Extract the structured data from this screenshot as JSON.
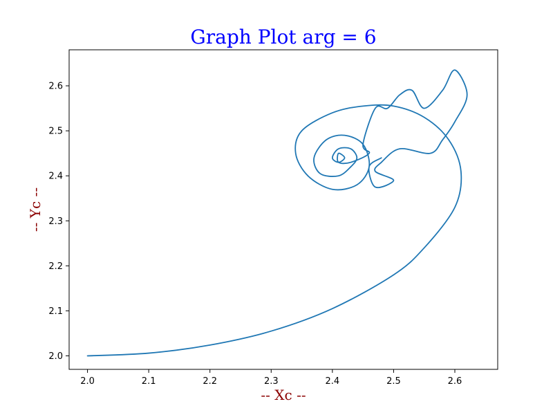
{
  "chart_data": {
    "type": "line",
    "title": "Graph Plot arg = 6",
    "xlabel": "-- Xc --",
    "ylabel": "-- Yc --",
    "xlim": [
      1.97,
      2.67
    ],
    "ylim": [
      1.97,
      2.68
    ],
    "xticks": [
      "2.0",
      "2.1",
      "2.2",
      "2.3",
      "2.4",
      "2.5",
      "2.6"
    ],
    "yticks": [
      "2.0",
      "2.1",
      "2.2",
      "2.3",
      "2.4",
      "2.5",
      "2.6"
    ],
    "grid": false,
    "legend": "none",
    "colors": {
      "series": "#1f77b4",
      "title": "#0000ff",
      "axis_label": "#8b0000"
    },
    "series": [
      {
        "x": [
          2.0,
          2.1,
          2.2,
          2.3,
          2.4,
          2.5,
          2.55,
          2.6,
          2.61,
          2.59,
          2.55,
          2.5,
          2.45,
          2.4,
          2.35,
          2.34,
          2.36,
          2.4,
          2.44,
          2.46,
          2.45,
          2.42,
          2.39,
          2.37,
          2.38,
          2.41,
          2.43,
          2.44,
          2.43,
          2.41,
          2.4,
          2.41,
          2.42,
          2.41,
          2.41,
          2.43,
          2.46,
          2.45,
          2.47,
          2.49,
          2.51,
          2.53,
          2.55,
          2.58,
          2.6,
          2.62,
          2.6,
          2.58,
          2.56,
          2.51,
          2.48,
          2.47,
          2.5,
          2.47,
          2.46,
          2.48
        ],
        "y": [
          2.0,
          2.006,
          2.024,
          2.055,
          2.105,
          2.18,
          2.24,
          2.33,
          2.41,
          2.48,
          2.53,
          2.555,
          2.555,
          2.54,
          2.5,
          2.45,
          2.4,
          2.37,
          2.38,
          2.42,
          2.47,
          2.49,
          2.48,
          2.44,
          2.405,
          2.4,
          2.42,
          2.44,
          2.46,
          2.46,
          2.44,
          2.43,
          2.44,
          2.45,
          2.43,
          2.43,
          2.45,
          2.47,
          2.55,
          2.55,
          2.58,
          2.59,
          2.55,
          2.59,
          2.635,
          2.58,
          2.52,
          2.48,
          2.45,
          2.46,
          2.43,
          2.41,
          2.39,
          2.375,
          2.42,
          2.44
        ]
      }
    ]
  }
}
